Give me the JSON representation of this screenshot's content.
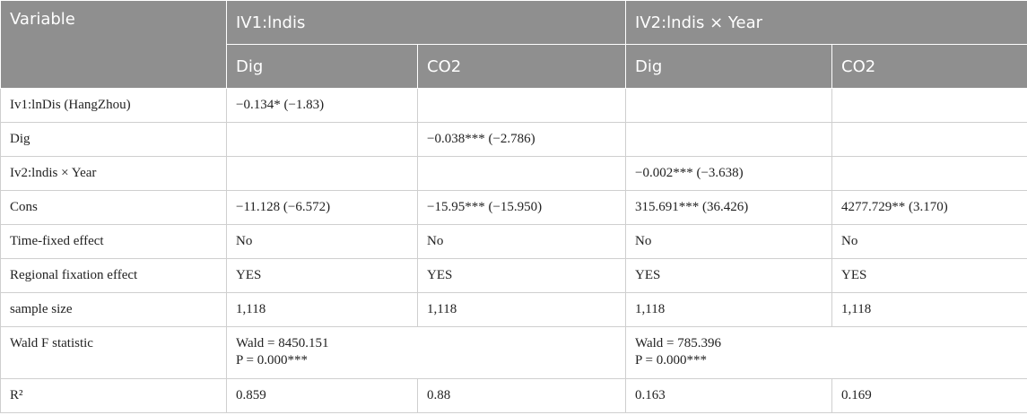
{
  "table": {
    "header": [
      "Variable",
      "IV1:lndis",
      "IV2:lndis × Year"
    ],
    "subheader": [
      "Dig",
      "CO2",
      "Dig",
      "CO2"
    ],
    "rows": [
      [
        "Iv1:lnDis (HangZhou)",
        "−0.134* (−1.83)",
        null,
        null,
        null
      ],
      [
        "Dig",
        null,
        "−0.038*** (−2.786)",
        null,
        null
      ],
      [
        "Iv2:lndis × Year",
        null,
        null,
        "−0.002*** (−3.638)",
        null
      ],
      [
        "Cons",
        "−11.128 (−6.572)",
        "−15.95*** (−15.950)",
        "315.691*** (36.426)",
        "4277.729** (3.170)"
      ],
      [
        "Time-fixed effect",
        "No",
        "No",
        "No",
        "No"
      ],
      [
        "Regional fixation effect",
        "YES",
        "YES",
        "YES",
        "YES"
      ],
      [
        "sample size",
        "1,118",
        "1,118",
        "1,118",
        "1,118"
      ],
      [
        "Wald F statistic",
        [
          "Wald = 8450.151",
          "P = 0.000***"
        ],
        [
          "Wald = 785.396",
          "P = 0.000***"
        ]
      ],
      [
        "R²",
        "0.859",
        "0.88",
        "0.163",
        "0.169"
      ]
    ]
  }
}
